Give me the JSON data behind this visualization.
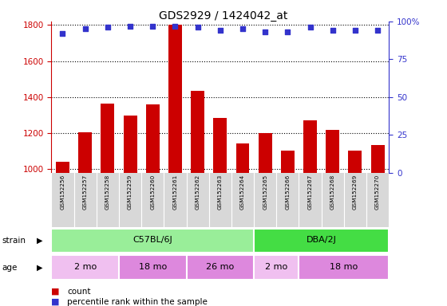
{
  "title": "GDS2929 / 1424042_at",
  "samples": [
    "GSM152256",
    "GSM152257",
    "GSM152258",
    "GSM152259",
    "GSM152260",
    "GSM152261",
    "GSM152262",
    "GSM152263",
    "GSM152264",
    "GSM152265",
    "GSM152266",
    "GSM152267",
    "GSM152268",
    "GSM152269",
    "GSM152270"
  ],
  "counts": [
    1040,
    1205,
    1365,
    1300,
    1360,
    1800,
    1435,
    1285,
    1145,
    1200,
    1105,
    1270,
    1220,
    1105,
    1135
  ],
  "percentile_ranks": [
    92,
    95,
    96,
    97,
    97,
    97,
    96,
    94,
    95,
    93,
    93,
    96,
    94,
    94,
    94
  ],
  "ylim_left": [
    980,
    1820
  ],
  "ylim_right": [
    0,
    100
  ],
  "yticks_left": [
    1000,
    1200,
    1400,
    1600,
    1800
  ],
  "yticks_right": [
    0,
    25,
    50,
    75,
    100
  ],
  "bar_color": "#cc0000",
  "dot_color": "#3333cc",
  "strain_groups": [
    {
      "label": "C57BL/6J",
      "start": 0,
      "end": 9,
      "color": "#99ee99"
    },
    {
      "label": "DBA/2J",
      "start": 9,
      "end": 15,
      "color": "#44dd44"
    }
  ],
  "age_groups": [
    {
      "label": "2 mo",
      "start": 0,
      "end": 3,
      "color": "#f0c0f0"
    },
    {
      "label": "18 mo",
      "start": 3,
      "end": 6,
      "color": "#dd88dd"
    },
    {
      "label": "26 mo",
      "start": 6,
      "end": 9,
      "color": "#dd88dd"
    },
    {
      "label": "2 mo",
      "start": 9,
      "end": 11,
      "color": "#f0c0f0"
    },
    {
      "label": "18 mo",
      "start": 11,
      "end": 15,
      "color": "#dd88dd"
    }
  ],
  "background_color": "#ffffff",
  "left_axis_color": "#cc0000",
  "right_axis_color": "#3333cc",
  "label_bg_color": "#d8d8d8"
}
